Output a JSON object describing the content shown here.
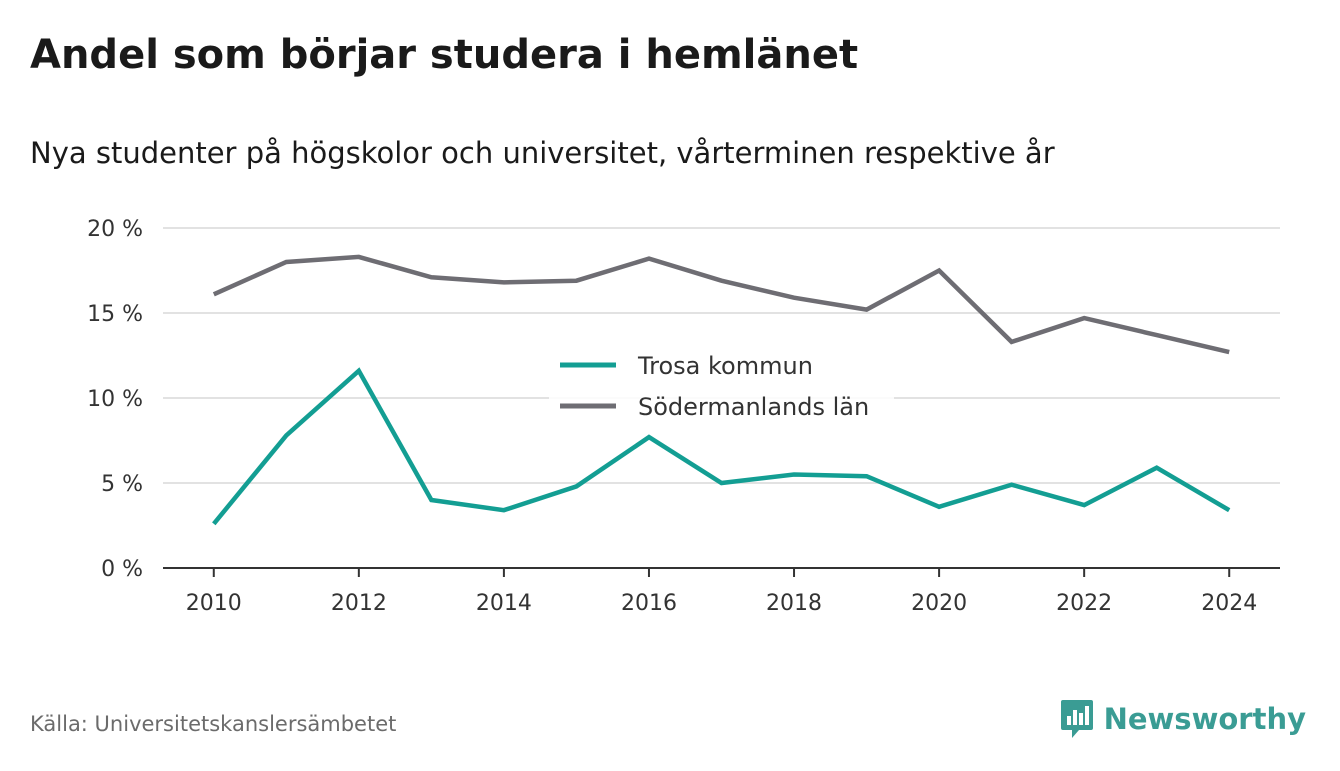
{
  "title": "Andel som börjar studera i hemlänet",
  "subtitle": "Nya studenter på högskolor och universitet, vårterminen respektive år",
  "source": "Källa: Universitetskanslersämbetet",
  "brand": {
    "name": "Newsworthy",
    "icon": "newsworthy-logo-icon",
    "color": "#3a9c94"
  },
  "colors": {
    "grid": "#d9d9d9",
    "axis": "#333333",
    "text": "#333333"
  },
  "chart_data": {
    "type": "line",
    "x": [
      2010,
      2011,
      2012,
      2013,
      2014,
      2015,
      2016,
      2017,
      2018,
      2019,
      2020,
      2021,
      2022,
      2023,
      2024
    ],
    "xticks": [
      2010,
      2012,
      2014,
      2016,
      2018,
      2020,
      2022,
      2024
    ],
    "xtick_labels": [
      "2010",
      "2012",
      "2014",
      "2016",
      "2018",
      "2020",
      "2022",
      "2024"
    ],
    "xlim": [
      2009.3,
      2024.7
    ],
    "ylim": [
      0,
      20
    ],
    "yticks": [
      0,
      5,
      10,
      15,
      20
    ],
    "ytick_labels": [
      "0 %",
      "5 %",
      "10 %",
      "15 %",
      "20 %"
    ],
    "grid": true,
    "legend": "center",
    "series": [
      {
        "name": "Trosa kommun",
        "color": "#139e93",
        "values": [
          2.6,
          7.8,
          11.6,
          4.0,
          3.4,
          4.8,
          7.7,
          5.0,
          5.5,
          5.4,
          3.6,
          4.9,
          3.7,
          5.9,
          3.4
        ]
      },
      {
        "name": "Södermanlands län",
        "color": "#6e6d73",
        "values": [
          16.1,
          18.0,
          18.3,
          17.1,
          16.8,
          16.9,
          18.2,
          16.9,
          15.9,
          15.2,
          17.5,
          13.3,
          14.7,
          13.7,
          12.7
        ]
      }
    ]
  }
}
